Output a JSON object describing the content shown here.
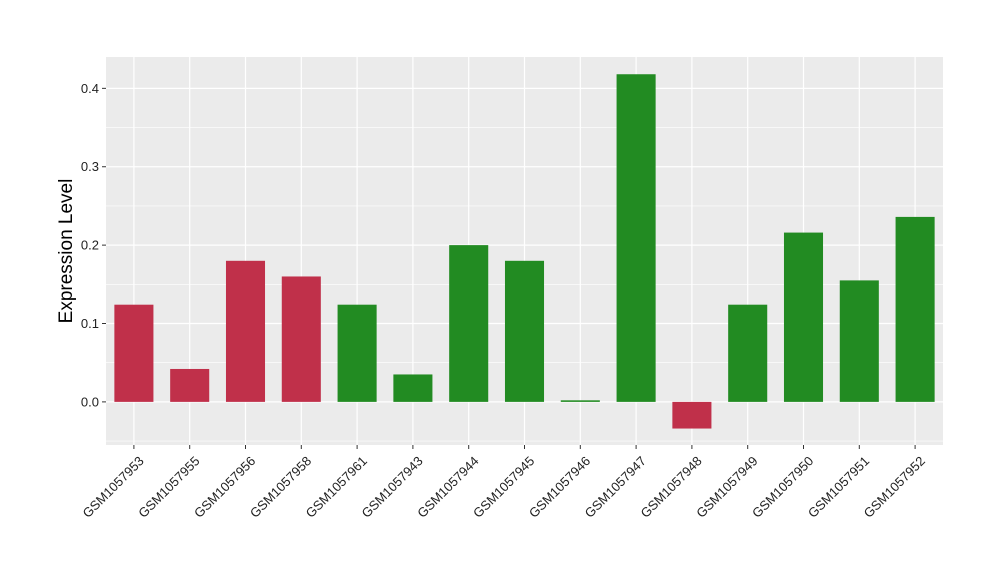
{
  "chart_data": {
    "type": "bar",
    "title": "",
    "xlabel": "",
    "ylabel": "Expression Level",
    "ylim": [
      -0.055,
      0.44
    ],
    "y_ticks": [
      0.0,
      0.1,
      0.2,
      0.3,
      0.4
    ],
    "y_tick_labels": [
      "0.0",
      "0.1",
      "0.2",
      "0.3",
      "0.4"
    ],
    "grid": true,
    "legend": "none",
    "panel_background": "#EBEBEB",
    "categories": [
      "GSM1057953",
      "GSM1057955",
      "GSM1057956",
      "GSM1057958",
      "GSM1057961",
      "GSM1057943",
      "GSM1057944",
      "GSM1057945",
      "GSM1057946",
      "GSM1057947",
      "GSM1057948",
      "GSM1057949",
      "GSM1057950",
      "GSM1057951",
      "GSM1057952"
    ],
    "values": [
      0.124,
      0.042,
      0.18,
      0.16,
      0.124,
      0.035,
      0.2,
      0.18,
      0.002,
      0.418,
      -0.034,
      0.124,
      0.216,
      0.155,
      0.236
    ],
    "bar_colors": [
      "#C0304A",
      "#C0304A",
      "#C0304A",
      "#C0304A",
      "#228B22",
      "#228B22",
      "#228B22",
      "#228B22",
      "#228B22",
      "#228B22",
      "#C0304A",
      "#228B22",
      "#228B22",
      "#228B22",
      "#228B22"
    ]
  }
}
